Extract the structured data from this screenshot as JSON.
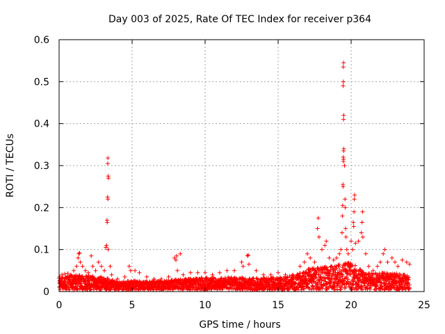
{
  "chart_data": {
    "type": "scatter",
    "title": "Day 003 of 2025, Rate Of TEC Index for receiver p364",
    "xlabel": "GPS time / hours",
    "ylabel": "ROTI / TECUs",
    "xlim": [
      0,
      25
    ],
    "ylim": [
      0,
      0.6
    ],
    "x_ticks": [
      "0",
      "5",
      "10",
      "15",
      "20",
      "25"
    ],
    "y_ticks": [
      "0",
      "0.1",
      "0.2",
      "0.3",
      "0.4",
      "0.5",
      "0.6"
    ],
    "x_tick_values": [
      0,
      5,
      10,
      15,
      20,
      25
    ],
    "y_tick_values": [
      0,
      0.1,
      0.2,
      0.3,
      0.4,
      0.5,
      0.6
    ],
    "grid": true,
    "marker": "plus",
    "colors": {
      "points": "#ff0000",
      "grid": "#a0a0a0",
      "axes": "#000000"
    },
    "x_range_data": [
      0,
      24
    ],
    "points": [
      [
        0.05,
        0.035
      ],
      [
        0.2,
        0.04
      ],
      [
        0.4,
        0.042
      ],
      [
        0.6,
        0.043
      ],
      [
        0.8,
        0.04
      ],
      [
        1.0,
        0.05
      ],
      [
        1.2,
        0.06
      ],
      [
        1.3,
        0.08
      ],
      [
        1.35,
        0.09
      ],
      [
        1.4,
        0.092
      ],
      [
        1.45,
        0.07
      ],
      [
        1.6,
        0.06
      ],
      [
        1.8,
        0.05
      ],
      [
        2.0,
        0.045
      ],
      [
        2.2,
        0.085
      ],
      [
        2.3,
        0.06
      ],
      [
        2.5,
        0.05
      ],
      [
        2.7,
        0.07
      ],
      [
        2.9,
        0.06
      ],
      [
        3.1,
        0.05
      ],
      [
        3.2,
        0.105
      ],
      [
        3.25,
        0.11
      ],
      [
        3.28,
        0.17
      ],
      [
        3.3,
        0.165
      ],
      [
        3.32,
        0.225
      ],
      [
        3.34,
        0.22
      ],
      [
        3.36,
        0.275
      ],
      [
        3.38,
        0.27
      ],
      [
        3.33,
        0.305
      ],
      [
        3.34,
        0.318
      ],
      [
        3.36,
        0.1
      ],
      [
        3.5,
        0.06
      ],
      [
        3.6,
        0.04
      ],
      [
        4.0,
        0.03
      ],
      [
        4.5,
        0.035
      ],
      [
        4.8,
        0.06
      ],
      [
        4.9,
        0.05
      ],
      [
        5.2,
        0.05
      ],
      [
        5.5,
        0.045
      ],
      [
        6.0,
        0.035
      ],
      [
        6.5,
        0.03
      ],
      [
        7.0,
        0.03
      ],
      [
        7.5,
        0.035
      ],
      [
        7.9,
        0.08
      ],
      [
        8.0,
        0.075
      ],
      [
        8.05,
        0.085
      ],
      [
        8.1,
        0.05
      ],
      [
        8.3,
        0.09
      ],
      [
        8.5,
        0.04
      ],
      [
        9.0,
        0.045
      ],
      [
        9.5,
        0.045
      ],
      [
        10.0,
        0.045
      ],
      [
        10.5,
        0.04
      ],
      [
        11.0,
        0.045
      ],
      [
        11.5,
        0.05
      ],
      [
        12.0,
        0.05
      ],
      [
        12.5,
        0.07
      ],
      [
        12.6,
        0.06
      ],
      [
        12.9,
        0.085
      ],
      [
        12.95,
        0.087
      ],
      [
        13.0,
        0.065
      ],
      [
        13.5,
        0.05
      ],
      [
        14.0,
        0.04
      ],
      [
        14.5,
        0.04
      ],
      [
        15.0,
        0.045
      ],
      [
        15.5,
        0.04
      ],
      [
        16.0,
        0.04
      ],
      [
        16.5,
        0.06
      ],
      [
        16.8,
        0.07
      ],
      [
        17.0,
        0.09
      ],
      [
        17.2,
        0.08
      ],
      [
        17.5,
        0.07
      ],
      [
        17.7,
        0.15
      ],
      [
        17.75,
        0.175
      ],
      [
        17.8,
        0.13
      ],
      [
        18.0,
        0.1
      ],
      [
        18.2,
        0.11
      ],
      [
        18.3,
        0.12
      ],
      [
        18.5,
        0.08
      ],
      [
        18.8,
        0.075
      ],
      [
        19.0,
        0.08
      ],
      [
        19.2,
        0.09
      ],
      [
        19.3,
        0.1
      ],
      [
        19.38,
        0.14
      ],
      [
        19.4,
        0.18
      ],
      [
        19.42,
        0.205
      ],
      [
        19.44,
        0.255
      ],
      [
        19.45,
        0.25
      ],
      [
        19.46,
        0.32
      ],
      [
        19.47,
        0.31
      ],
      [
        19.48,
        0.315
      ],
      [
        19.49,
        0.335
      ],
      [
        19.5,
        0.34
      ],
      [
        19.48,
        0.41
      ],
      [
        19.49,
        0.42
      ],
      [
        19.45,
        0.49
      ],
      [
        19.47,
        0.5
      ],
      [
        19.46,
        0.535
      ],
      [
        19.48,
        0.545
      ],
      [
        19.55,
        0.3
      ],
      [
        19.58,
        0.22
      ],
      [
        19.6,
        0.2
      ],
      [
        19.62,
        0.15
      ],
      [
        19.65,
        0.13
      ],
      [
        19.7,
        0.1
      ],
      [
        19.8,
        0.09
      ],
      [
        20.0,
        0.12
      ],
      [
        20.1,
        0.1
      ],
      [
        20.15,
        0.165
      ],
      [
        20.18,
        0.155
      ],
      [
        20.2,
        0.19
      ],
      [
        20.22,
        0.22
      ],
      [
        20.24,
        0.23
      ],
      [
        20.3,
        0.115
      ],
      [
        20.5,
        0.12
      ],
      [
        20.7,
        0.14
      ],
      [
        20.75,
        0.165
      ],
      [
        20.78,
        0.19
      ],
      [
        20.8,
        0.13
      ],
      [
        21.0,
        0.09
      ],
      [
        21.2,
        0.06
      ],
      [
        21.5,
        0.05
      ],
      [
        21.8,
        0.06
      ],
      [
        22.0,
        0.07
      ],
      [
        22.2,
        0.09
      ],
      [
        22.3,
        0.1
      ],
      [
        22.5,
        0.07
      ],
      [
        22.8,
        0.08
      ],
      [
        23.0,
        0.07
      ],
      [
        23.2,
        0.06
      ],
      [
        23.5,
        0.075
      ],
      [
        23.8,
        0.07
      ],
      [
        24.0,
        0.065
      ]
    ],
    "baseline_band": [
      [
        0,
        0.03
      ],
      [
        1,
        0.035
      ],
      [
        2,
        0.035
      ],
      [
        3,
        0.03
      ],
      [
        4,
        0.02
      ],
      [
        5,
        0.022
      ],
      [
        6,
        0.02
      ],
      [
        7,
        0.022
      ],
      [
        8,
        0.025
      ],
      [
        9,
        0.028
      ],
      [
        10,
        0.03
      ],
      [
        11,
        0.028
      ],
      [
        12,
        0.03
      ],
      [
        13,
        0.028
      ],
      [
        14,
        0.028
      ],
      [
        15,
        0.03
      ],
      [
        16,
        0.035
      ],
      [
        16.5,
        0.04
      ],
      [
        17,
        0.05
      ],
      [
        18,
        0.055
      ],
      [
        19,
        0.06
      ],
      [
        20,
        0.065
      ],
      [
        21,
        0.04
      ],
      [
        22,
        0.04
      ],
      [
        23,
        0.04
      ],
      [
        24,
        0.035
      ]
    ]
  }
}
